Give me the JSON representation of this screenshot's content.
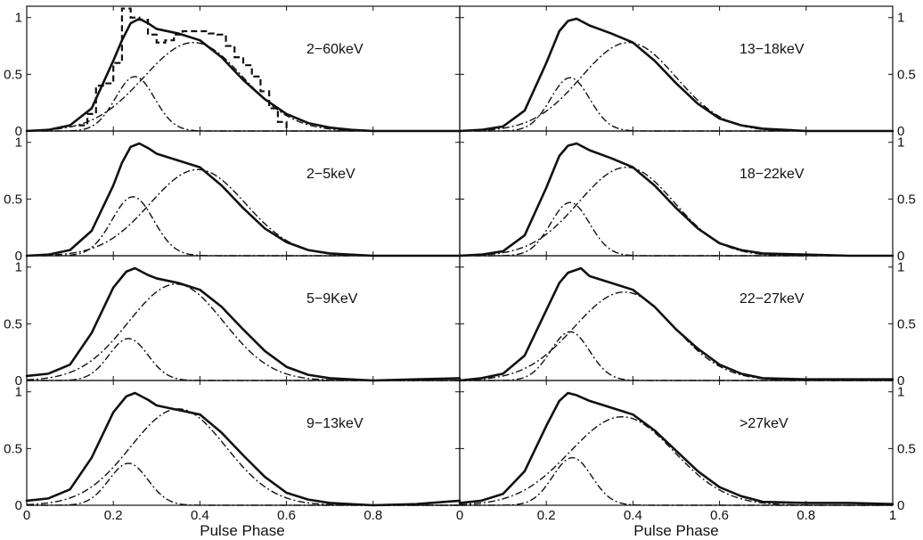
{
  "chart_data": {
    "type": "line",
    "title": "",
    "xlabel": "Pulse Phase",
    "ylabel": "",
    "xlim": [
      0,
      1
    ],
    "ylim": [
      0,
      1.1
    ],
    "grid": false,
    "x_ticks": [
      0,
      0.2,
      0.4,
      0.6,
      0.8,
      1
    ],
    "y_ticks": [
      0,
      0.5,
      1
    ],
    "panels": [
      {
        "label": "2−60keV",
        "column": 0,
        "row": 0,
        "components": [
          {
            "style": "dash-dot",
            "amplitude": 0.48,
            "center": 0.25,
            "width": 0.045
          },
          {
            "style": "dash-dot",
            "amplitude": 0.78,
            "center": 0.385,
            "width": 0.115
          }
        ],
        "series": [
          {
            "style": "solid-thick",
            "x": [
              0,
              0.05,
              0.1,
              0.15,
              0.2,
              0.22,
              0.24,
              0.26,
              0.28,
              0.3,
              0.35,
              0.4,
              0.45,
              0.5,
              0.55,
              0.6,
              0.65,
              0.7,
              0.75,
              0.8,
              0.9,
              1
            ],
            "y": [
              0,
              0.01,
              0.05,
              0.2,
              0.62,
              0.8,
              0.95,
              0.99,
              0.95,
              0.9,
              0.86,
              0.8,
              0.65,
              0.45,
              0.28,
              0.15,
              0.07,
              0.03,
              0.01,
              0,
              0,
              0
            ]
          },
          {
            "style": "dashed-step",
            "x": [
              0.12,
              0.14,
              0.16,
              0.18,
              0.2,
              0.22,
              0.24,
              0.26,
              0.28,
              0.3,
              0.32,
              0.34,
              0.36,
              0.38,
              0.4,
              0.42,
              0.44,
              0.46,
              0.48,
              0.5,
              0.52,
              0.54,
              0.56,
              0.58,
              0.6
            ],
            "y": [
              0.05,
              0.15,
              0.4,
              0.42,
              0.6,
              1.08,
              1.0,
              0.98,
              0.85,
              0.78,
              0.8,
              0.85,
              0.88,
              0.88,
              0.88,
              0.86,
              0.85,
              0.75,
              0.65,
              0.58,
              0.48,
              0.35,
              0.2,
              0.08,
              0
            ]
          }
        ]
      },
      {
        "label": "2−5keV",
        "column": 0,
        "row": 1,
        "components": [
          {
            "style": "dash-dot",
            "amplitude": 0.52,
            "center": 0.245,
            "width": 0.048
          },
          {
            "style": "dash-dot",
            "amplitude": 0.76,
            "center": 0.395,
            "width": 0.11
          }
        ],
        "series": [
          {
            "style": "solid-thick",
            "x": [
              0,
              0.05,
              0.1,
              0.15,
              0.2,
              0.22,
              0.24,
              0.26,
              0.28,
              0.3,
              0.35,
              0.4,
              0.45,
              0.5,
              0.55,
              0.6,
              0.65,
              0.7,
              0.8,
              0.9,
              1
            ],
            "y": [
              0,
              0.01,
              0.05,
              0.22,
              0.62,
              0.82,
              0.96,
              0.99,
              0.95,
              0.9,
              0.84,
              0.78,
              0.62,
              0.42,
              0.24,
              0.12,
              0.05,
              0.02,
              0,
              0,
              0
            ]
          }
        ]
      },
      {
        "label": "5−9KeV",
        "column": 0,
        "row": 2,
        "components": [
          {
            "style": "dash-dot",
            "amplitude": 0.37,
            "center": 0.235,
            "width": 0.045
          },
          {
            "style": "dash-dot",
            "amplitude": 0.85,
            "center": 0.345,
            "width": 0.11
          }
        ],
        "series": [
          {
            "style": "solid-thick",
            "x": [
              0,
              0.05,
              0.1,
              0.15,
              0.2,
              0.23,
              0.25,
              0.28,
              0.3,
              0.35,
              0.4,
              0.45,
              0.5,
              0.55,
              0.6,
              0.65,
              0.7,
              0.8,
              0.9,
              1
            ],
            "y": [
              0.04,
              0.06,
              0.14,
              0.42,
              0.82,
              0.96,
              0.99,
              0.93,
              0.9,
              0.86,
              0.8,
              0.65,
              0.45,
              0.26,
              0.12,
              0.05,
              0.02,
              0,
              0.01,
              0.02
            ]
          }
        ]
      },
      {
        "label": "9−13keV",
        "column": 0,
        "row": 3,
        "components": [
          {
            "style": "dash-dot",
            "amplitude": 0.37,
            "center": 0.235,
            "width": 0.045
          },
          {
            "style": "dash-dot",
            "amplitude": 0.85,
            "center": 0.35,
            "width": 0.11
          }
        ],
        "series": [
          {
            "style": "solid-thick",
            "x": [
              0,
              0.05,
              0.1,
              0.15,
              0.2,
              0.23,
              0.25,
              0.28,
              0.3,
              0.35,
              0.4,
              0.45,
              0.5,
              0.55,
              0.6,
              0.65,
              0.7,
              0.8,
              0.9,
              1
            ],
            "y": [
              0.04,
              0.06,
              0.14,
              0.42,
              0.82,
              0.96,
              0.99,
              0.93,
              0.88,
              0.84,
              0.8,
              0.64,
              0.44,
              0.25,
              0.11,
              0.05,
              0.02,
              0,
              0.01,
              0.04
            ]
          }
        ]
      },
      {
        "label": "13−18keV",
        "column": 1,
        "row": 0,
        "components": [
          {
            "style": "dash-dot",
            "amplitude": 0.47,
            "center": 0.255,
            "width": 0.045
          },
          {
            "style": "dash-dot",
            "amplitude": 0.78,
            "center": 0.39,
            "width": 0.11
          }
        ],
        "series": [
          {
            "style": "solid-thick",
            "x": [
              0,
              0.05,
              0.1,
              0.15,
              0.2,
              0.23,
              0.25,
              0.27,
              0.3,
              0.35,
              0.4,
              0.45,
              0.5,
              0.55,
              0.6,
              0.65,
              0.7,
              0.8,
              0.9,
              1
            ],
            "y": [
              0,
              0.01,
              0.04,
              0.18,
              0.6,
              0.88,
              0.97,
              0.99,
              0.93,
              0.86,
              0.78,
              0.62,
              0.42,
              0.24,
              0.11,
              0.05,
              0.02,
              0,
              0,
              0
            ]
          }
        ]
      },
      {
        "label": "18−22keV",
        "column": 1,
        "row": 1,
        "components": [
          {
            "style": "dash-dot",
            "amplitude": 0.47,
            "center": 0.255,
            "width": 0.045
          },
          {
            "style": "dash-dot",
            "amplitude": 0.78,
            "center": 0.385,
            "width": 0.11
          }
        ],
        "series": [
          {
            "style": "solid-thick",
            "x": [
              0,
              0.05,
              0.1,
              0.15,
              0.2,
              0.23,
              0.25,
              0.27,
              0.3,
              0.35,
              0.4,
              0.45,
              0.5,
              0.55,
              0.6,
              0.65,
              0.7,
              0.8,
              0.9,
              1
            ],
            "y": [
              0,
              0.01,
              0.04,
              0.18,
              0.6,
              0.88,
              0.97,
              0.99,
              0.93,
              0.86,
              0.78,
              0.62,
              0.42,
              0.24,
              0.11,
              0.05,
              0.02,
              0.01,
              0,
              0
            ]
          }
        ]
      },
      {
        "label": "22−27keV",
        "column": 1,
        "row": 2,
        "components": [
          {
            "style": "dash-dot",
            "amplitude": 0.43,
            "center": 0.255,
            "width": 0.045
          },
          {
            "style": "dash-dot",
            "amplitude": 0.78,
            "center": 0.38,
            "width": 0.115
          }
        ],
        "series": [
          {
            "style": "solid-thick",
            "x": [
              0,
              0.05,
              0.1,
              0.15,
              0.2,
              0.23,
              0.25,
              0.28,
              0.3,
              0.35,
              0.4,
              0.45,
              0.5,
              0.55,
              0.6,
              0.65,
              0.7,
              0.8,
              0.9,
              1
            ],
            "y": [
              0,
              0.02,
              0.06,
              0.22,
              0.62,
              0.86,
              0.95,
              0.99,
              0.92,
              0.86,
              0.8,
              0.65,
              0.45,
              0.28,
              0.14,
              0.06,
              0.02,
              0.01,
              0.01,
              0.01
            ]
          }
        ]
      },
      {
        "label": ">27keV",
        "column": 1,
        "row": 3,
        "components": [
          {
            "style": "dash-dot",
            "amplitude": 0.42,
            "center": 0.26,
            "width": 0.045
          },
          {
            "style": "dash-dot",
            "amplitude": 0.78,
            "center": 0.375,
            "width": 0.12
          }
        ],
        "series": [
          {
            "style": "solid-thick",
            "x": [
              0,
              0.05,
              0.1,
              0.15,
              0.2,
              0.23,
              0.25,
              0.27,
              0.3,
              0.35,
              0.4,
              0.45,
              0.5,
              0.55,
              0.6,
              0.65,
              0.7,
              0.8,
              0.9,
              1
            ],
            "y": [
              0.02,
              0.04,
              0.1,
              0.3,
              0.7,
              0.92,
              0.99,
              0.97,
              0.92,
              0.86,
              0.8,
              0.66,
              0.48,
              0.3,
              0.16,
              0.08,
              0.03,
              0.02,
              0.02,
              0.01
            ]
          }
        ]
      }
    ]
  }
}
